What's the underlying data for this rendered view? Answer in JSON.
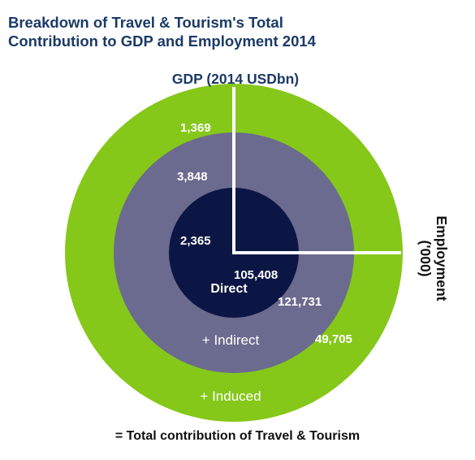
{
  "title_lines": [
    "Breakdown of Travel & Tourism's Total",
    "Contribution to GDP and Employment 2014"
  ],
  "footer": "= Total contribution of Travel & Tourism",
  "colors": {
    "title": "#1b3a66",
    "induced": "#85c81a",
    "indirect": "#6b6b8f",
    "direct": "#0c1644",
    "divider": "#ffffff",
    "label_dark": "#111111"
  },
  "chart_data": {
    "type": "nested-circles",
    "title": "Breakdown of Travel & Tourism's Total Contribution to GDP and Employment 2014",
    "rings": [
      {
        "name": "Direct",
        "label": "Direct",
        "gdp": "2,365",
        "employment": "105,408"
      },
      {
        "name": "Indirect",
        "label": "+ Indirect",
        "gdp": "3,848",
        "employment": "121,731"
      },
      {
        "name": "Induced",
        "label": "+ Induced",
        "gdp": "1,369",
        "employment": "49,705"
      }
    ],
    "gdp_axis_label": "GDP (2014 USDbn)",
    "employment_axis_label": "Employment ('000)",
    "employment_axis_label_lines": [
      "Employment",
      "('000)"
    ]
  }
}
